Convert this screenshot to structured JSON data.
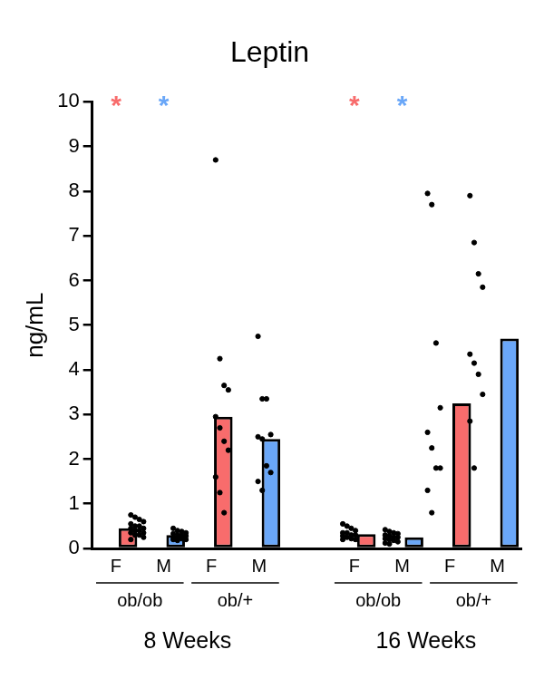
{
  "chart_data": {
    "type": "bar",
    "title": "Leptin",
    "y_label": "ng/mL",
    "categories": [
      "F",
      "M",
      "F",
      "M",
      null,
      "F",
      "M",
      "F",
      "M"
    ],
    "genotype": [
      "ob/ob",
      "ob/ob",
      "ob/+",
      "ob/+",
      null,
      "ob/ob",
      "ob/ob",
      "ob/+",
      "ob/+"
    ],
    "age": [
      "8 Weeks",
      "8 Weeks",
      "8 Weeks",
      "8 Weeks",
      null,
      "16 Weeks",
      "16 Weeks",
      "16 Weeks",
      "16 Weeks"
    ],
    "values": [
      0.45,
      0.3,
      2.95,
      2.45,
      null,
      0.32,
      0.25,
      3.25,
      4.7
    ],
    "colors": [
      "#f86c6c",
      "#6aa7f8",
      "#f86c6c",
      "#6aa7f8",
      null,
      "#f86c6c",
      "#6aa7f8",
      "#f86c6c",
      "#6aa7f8"
    ],
    "points": [
      [
        0.75,
        0.7,
        0.65,
        0.6,
        0.55,
        0.5,
        0.5,
        0.45,
        0.45,
        0.4,
        0.4,
        0.35,
        0.35,
        0.3,
        0.3,
        0.25,
        0.2
      ],
      [
        0.45,
        0.4,
        0.38,
        0.35,
        0.33,
        0.3,
        0.3,
        0.28,
        0.25,
        0.25,
        0.22,
        0.2,
        0.2,
        0.18
      ],
      [
        8.7,
        4.25,
        3.65,
        3.55,
        2.95,
        2.7,
        2.4,
        2.2,
        1.6,
        1.25,
        0.8
      ],
      [
        4.75,
        3.35,
        3.35,
        2.55,
        2.5,
        2.45,
        1.85,
        1.7,
        1.5,
        1.3
      ],
      null,
      [
        0.55,
        0.5,
        0.45,
        0.4,
        0.35,
        0.35,
        0.3,
        0.3,
        0.28,
        0.25,
        0.22,
        0.2,
        0.2
      ],
      [
        0.42,
        0.38,
        0.35,
        0.33,
        0.3,
        0.28,
        0.25,
        0.25,
        0.22,
        0.2,
        0.18,
        0.15,
        0.12,
        0.1
      ],
      [
        7.95,
        7.7,
        4.6,
        3.15,
        2.6,
        2.25,
        1.8,
        1.8,
        1.3,
        0.8
      ],
      [
        7.9,
        6.85,
        6.15,
        5.85,
        4.35,
        4.15,
        3.9,
        3.45,
        2.85,
        1.8
      ]
    ],
    "significance": [
      "*",
      "*",
      null,
      null,
      null,
      "*",
      "*",
      null,
      null
    ],
    "ylim": [
      0,
      10
    ],
    "yticks": [
      0,
      1,
      2,
      3,
      4,
      5,
      6,
      7,
      8,
      9,
      10
    ],
    "grid": false
  }
}
